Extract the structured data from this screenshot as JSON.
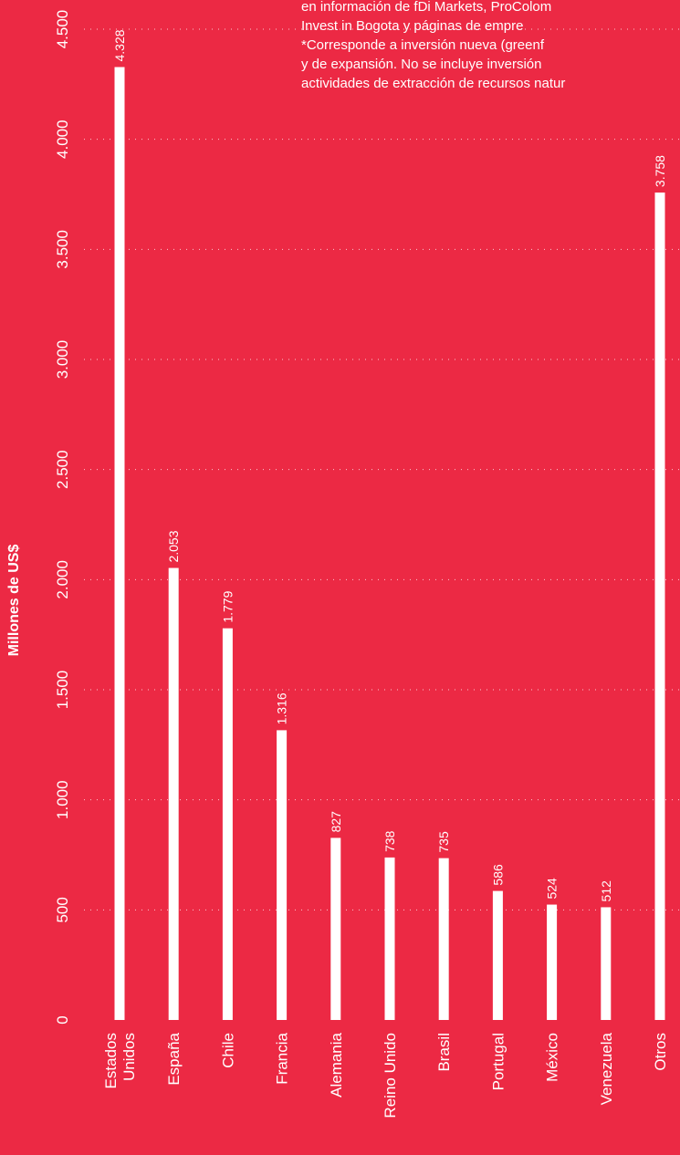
{
  "note": {
    "lines": [
      "en información de fDi Markets, ProColom",
      "Invest in Bogota y páginas de empre",
      "*Corresponde a inversión nueva (greenf",
      "y de expansión. No se incluye inversión",
      "actividades de extracción de recursos natur"
    ]
  },
  "chart_data": {
    "type": "bar",
    "orientation": "vertical-bars-rotated-page",
    "ylabel": "Millones de US$",
    "ylim": [
      0,
      4500
    ],
    "yticks": [
      0,
      500,
      1000,
      1500,
      2000,
      2500,
      3000,
      3500,
      4000,
      4500
    ],
    "ytick_labels": [
      "0",
      "500",
      "1.000",
      "1.500",
      "2.000",
      "2.500",
      "3.000",
      "3.500",
      "4.000",
      "4.500"
    ],
    "grid": true,
    "categories": [
      [
        "Estados",
        "Unidos"
      ],
      [
        "España"
      ],
      [
        "Chile"
      ],
      [
        "Francia"
      ],
      [
        "Alemania"
      ],
      [
        "Reino Unido"
      ],
      [
        "Brasil"
      ],
      [
        "Portugal"
      ],
      [
        "México"
      ],
      [
        "Venezuela"
      ],
      [
        "Otros"
      ]
    ],
    "values": [
      4328,
      2053,
      1779,
      1316,
      827,
      738,
      735,
      586,
      524,
      512,
      3758
    ],
    "value_labels": [
      "4.328",
      "2.053",
      "1.779",
      "1.316",
      "827",
      "738",
      "735",
      "586",
      "524",
      "512",
      "3.758"
    ],
    "colors": {
      "background": "#ec2944",
      "bar": "#ffffff",
      "text": "#ffffff"
    }
  }
}
